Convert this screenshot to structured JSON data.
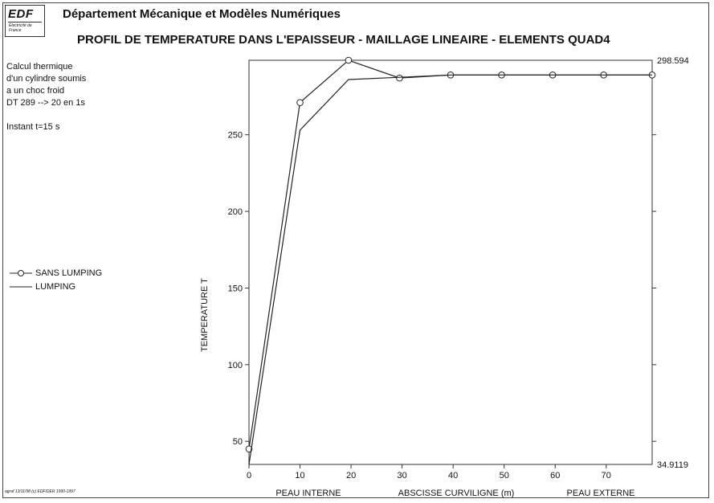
{
  "header": {
    "logo_main": "EDF",
    "logo_sub": "Electricité de France",
    "department": "Département Mécanique et Modèles Numériques",
    "credit": "agraf 13/11/98 (c) EDF/DER 1990-1997"
  },
  "info": {
    "lines": [
      "Calcul thermique",
      "d'un cylindre soumis",
      "a un choc froid",
      "DT 289 --> 20 en 1s"
    ],
    "instant": "Instant t=15 s"
  },
  "chart_data": {
    "type": "line",
    "title": "PROFIL DE TEMPERATURE DANS L'EPAISSEUR - MAILLAGE LINEAIRE - ELEMENTS QUAD4",
    "xlabel": "ABSCISSE CURVILIGNE (m)",
    "ylabel": "TEMPERATURE T",
    "x_annotations": {
      "left": "PEAU INTERNE",
      "right": "PEAU EXTERNE"
    },
    "xlim": [
      0,
      79
    ],
    "ylim": [
      34.9119,
      298.594
    ],
    "y_bounds_labels": {
      "max": "298.594",
      "min": "34.9119"
    },
    "xticks": [
      0,
      10,
      20,
      30,
      40,
      50,
      60,
      70
    ],
    "yticks": [
      50,
      100,
      150,
      200,
      250
    ],
    "grid": false,
    "legend_position": "left",
    "series": [
      {
        "name": "SANS LUMPING",
        "marker": "circle",
        "x": [
          0,
          10,
          19.5,
          29.5,
          39.5,
          49.5,
          59.5,
          69.5,
          79
        ],
        "y": [
          45,
          271,
          298.6,
          287,
          289,
          289,
          289,
          289,
          289
        ]
      },
      {
        "name": "LUMPING",
        "marker": "none",
        "x": [
          0,
          10,
          19.5,
          29.5,
          39.5,
          49.5,
          59.5,
          69.5,
          79
        ],
        "y": [
          34.9,
          253,
          286,
          287.5,
          289,
          289,
          289,
          289,
          289
        ]
      }
    ]
  }
}
